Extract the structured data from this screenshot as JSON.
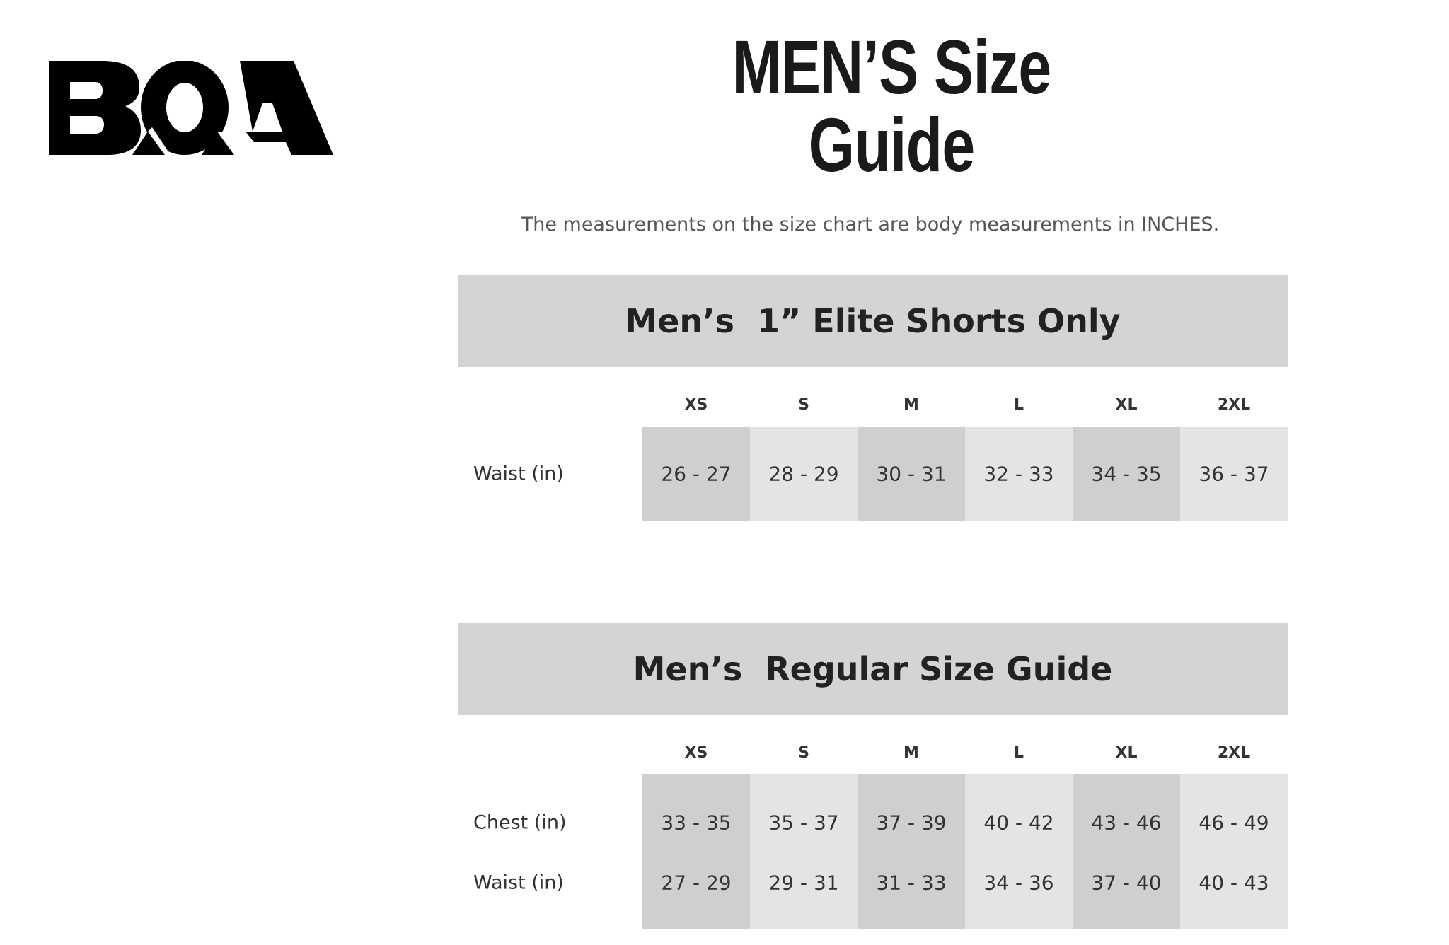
{
  "logo": {
    "text": "BOA"
  },
  "title": "MEN’S Size Guide",
  "note": "The measurements on the size chart are body measurements in INCHES.",
  "colors": {
    "banner": "#d4d4d4",
    "cell_dark": "#cfcfcf",
    "cell_light": "#e4e4e4"
  },
  "tables": [
    {
      "heading": "Men’s  1” Elite Shorts Only",
      "sizes": [
        "XS",
        "S",
        "M",
        "L",
        "XL",
        "2XL"
      ],
      "rows": [
        {
          "label": "Waist (in)",
          "values": [
            "26 - 27",
            "28 - 29",
            "30 - 31",
            "32 - 33",
            "34 - 35",
            "36 - 37"
          ]
        }
      ]
    },
    {
      "heading": "Men’s  Regular Size Guide",
      "sizes": [
        "XS",
        "S",
        "M",
        "L",
        "XL",
        "2XL"
      ],
      "rows": [
        {
          "label": "Chest (in)",
          "values": [
            "33 - 35",
            "35 - 37",
            "37 - 39",
            "40 - 42",
            "43 - 46",
            "46 - 49"
          ]
        },
        {
          "label": "Waist (in)",
          "values": [
            "27 - 29",
            "29 - 31",
            "31 - 33",
            "34 - 36",
            "37 - 40",
            "40 - 43"
          ]
        }
      ]
    }
  ]
}
